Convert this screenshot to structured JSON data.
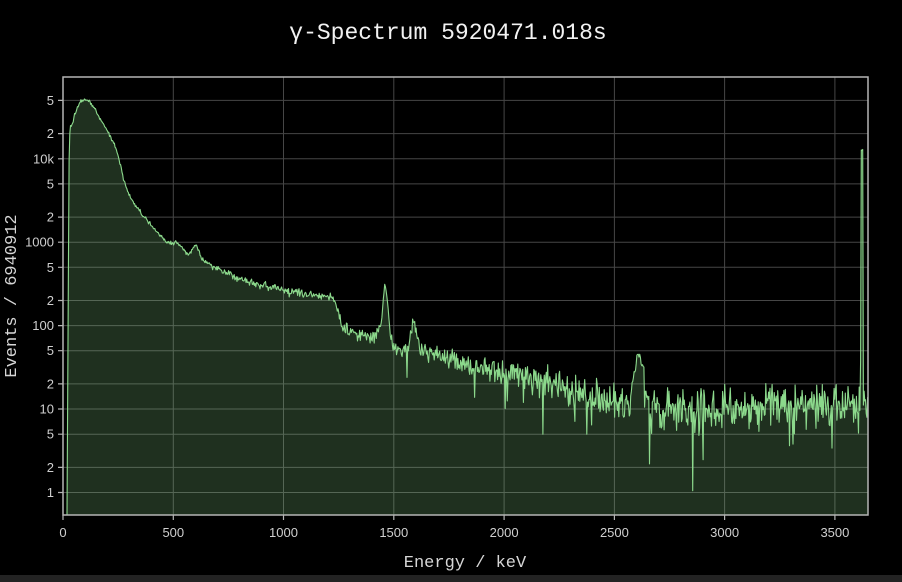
{
  "window": {
    "background_color": "#000000",
    "bottom_edge_color": "#232323"
  },
  "chart_data": {
    "type": "area",
    "title": "γ-Spectrum 5920471.018s",
    "xlabel": "Energy / keV",
    "ylabel": "Events / 6940912",
    "x_range": [
      0,
      3650
    ],
    "y_scale": "log",
    "y_log_range": [
      -0.27,
      4.98
    ],
    "grid": true,
    "legend": "none",
    "x_ticks": [
      0,
      500,
      1000,
      1500,
      2000,
      2500,
      3000,
      3500
    ],
    "y_ticks": [
      {
        "v": 1,
        "label": "1"
      },
      {
        "v": 2,
        "label": "2"
      },
      {
        "v": 5,
        "label": "5"
      },
      {
        "v": 10,
        "label": "10"
      },
      {
        "v": 20,
        "label": "2"
      },
      {
        "v": 50,
        "label": "5"
      },
      {
        "v": 100,
        "label": "100"
      },
      {
        "v": 200,
        "label": "2"
      },
      {
        "v": 500,
        "label": "5"
      },
      {
        "v": 1000,
        "label": "1000"
      },
      {
        "v": 2000,
        "label": "2"
      },
      {
        "v": 5000,
        "label": "5"
      },
      {
        "v": 10000,
        "label": "10k"
      },
      {
        "v": 20000,
        "label": "2"
      },
      {
        "v": 50000,
        "label": "5"
      }
    ],
    "colors": {
      "line": "#8cd98c",
      "fill": "rgba(140,217,140,0.22)",
      "grid": "#464646",
      "axis": "#b5b5b5",
      "tick_text": "#cfcfcf",
      "title_text": "#f2f2f2"
    },
    "notable_peaks": [
      {
        "energy": 100,
        "counts": 51500,
        "note": "broad low-energy maximum"
      },
      {
        "energy": 511,
        "counts": 1050,
        "note": "small bump"
      },
      {
        "energy": 609,
        "counts": 900,
        "note": "small bump"
      },
      {
        "energy": 1461,
        "counts": 335,
        "note": "prominent peak"
      },
      {
        "energy": 1592,
        "counts": 118,
        "note": "secondary peak"
      },
      {
        "energy": 2614,
        "counts": 45,
        "note": "small peak"
      },
      {
        "energy": 3623,
        "counts": 13200,
        "note": "overflow spike at right edge"
      }
    ],
    "backbone": [
      [
        18,
        0.6
      ],
      [
        24,
        300
      ],
      [
        26,
        6000
      ],
      [
        30,
        20000
      ],
      [
        34,
        25500
      ],
      [
        38,
        24500
      ],
      [
        42,
        26500
      ],
      [
        50,
        32000
      ],
      [
        60,
        39000
      ],
      [
        72,
        45000
      ],
      [
        85,
        49500
      ],
      [
        100,
        51500
      ],
      [
        112,
        50500
      ],
      [
        125,
        47000
      ],
      [
        138,
        42500
      ],
      [
        152,
        36500
      ],
      [
        166,
        31000
      ],
      [
        182,
        26000
      ],
      [
        200,
        21500
      ],
      [
        215,
        18500
      ],
      [
        228,
        16000
      ],
      [
        242,
        12800
      ],
      [
        255,
        9800
      ],
      [
        266,
        7300
      ],
      [
        278,
        5300
      ],
      [
        292,
        4200
      ],
      [
        308,
        3400
      ],
      [
        325,
        2800
      ],
      [
        342,
        2450
      ],
      [
        360,
        2150
      ],
      [
        380,
        1850
      ],
      [
        400,
        1600
      ],
      [
        420,
        1380
      ],
      [
        440,
        1200
      ],
      [
        460,
        1070
      ],
      [
        480,
        990
      ],
      [
        498,
        950
      ],
      [
        508,
        1030
      ],
      [
        514,
        1050
      ],
      [
        522,
        950
      ],
      [
        538,
        840
      ],
      [
        555,
        760
      ],
      [
        572,
        730
      ],
      [
        588,
        820
      ],
      [
        600,
        900
      ],
      [
        610,
        850
      ],
      [
        622,
        700
      ],
      [
        638,
        610
      ],
      [
        655,
        560
      ],
      [
        675,
        515
      ],
      [
        700,
        480
      ],
      [
        725,
        450
      ],
      [
        750,
        425
      ],
      [
        775,
        400
      ],
      [
        800,
        375
      ],
      [
        825,
        352
      ],
      [
        850,
        332
      ],
      [
        875,
        318
      ],
      [
        900,
        305
      ],
      [
        930,
        292
      ],
      [
        960,
        282
      ],
      [
        990,
        272
      ],
      [
        1020,
        263
      ],
      [
        1050,
        256
      ],
      [
        1080,
        250
      ],
      [
        1110,
        245
      ],
      [
        1140,
        240
      ],
      [
        1170,
        235
      ],
      [
        1200,
        230
      ],
      [
        1222,
        222
      ],
      [
        1238,
        190
      ],
      [
        1252,
        130
      ],
      [
        1266,
        100
      ],
      [
        1282,
        90
      ],
      [
        1300,
        84
      ],
      [
        1320,
        80
      ],
      [
        1340,
        77
      ],
      [
        1360,
        75
      ],
      [
        1380,
        74
      ],
      [
        1400,
        77
      ],
      [
        1418,
        82
      ],
      [
        1434,
        94
      ],
      [
        1446,
        135
      ],
      [
        1455,
        240
      ],
      [
        1461,
        335
      ],
      [
        1467,
        250
      ],
      [
        1475,
        140
      ],
      [
        1483,
        88
      ],
      [
        1493,
        64
      ],
      [
        1505,
        55
      ],
      [
        1518,
        50
      ],
      [
        1532,
        50
      ],
      [
        1546,
        53
      ],
      [
        1560,
        58
      ],
      [
        1572,
        68
      ],
      [
        1583,
        92
      ],
      [
        1590,
        118
      ],
      [
        1596,
        105
      ],
      [
        1604,
        78
      ],
      [
        1613,
        60
      ],
      [
        1625,
        52
      ],
      [
        1640,
        48
      ],
      [
        1660,
        46
      ],
      [
        1690,
        44
      ],
      [
        1725,
        42
      ],
      [
        1762,
        40
      ],
      [
        1800,
        38
      ],
      [
        1838,
        36
      ],
      [
        1876,
        34
      ],
      [
        1915,
        32
      ],
      [
        1955,
        30
      ],
      [
        2000,
        28.5
      ],
      [
        2045,
        27
      ],
      [
        2090,
        25.5
      ],
      [
        2135,
        24
      ],
      [
        2180,
        22.5
      ],
      [
        2225,
        20.5
      ],
      [
        2270,
        18.5
      ],
      [
        2315,
        16.5
      ],
      [
        2360,
        15
      ],
      [
        2405,
        13.8
      ],
      [
        2455,
        12.8
      ],
      [
        2505,
        12
      ],
      [
        2550,
        11.6
      ],
      [
        2572,
        12.5
      ],
      [
        2590,
        26
      ],
      [
        2604,
        41
      ],
      [
        2614,
        45
      ],
      [
        2624,
        39
      ],
      [
        2636,
        22
      ],
      [
        2648,
        13
      ],
      [
        2672,
        11.3
      ],
      [
        2720,
        10.8
      ],
      [
        2780,
        10.4
      ],
      [
        2840,
        10.2
      ],
      [
        2900,
        10.3
      ],
      [
        2960,
        10.5
      ],
      [
        3030,
        10.7
      ],
      [
        3110,
        10.9
      ],
      [
        3200,
        11.1
      ],
      [
        3290,
        11.3
      ],
      [
        3380,
        11.5
      ],
      [
        3470,
        11.7
      ],
      [
        3550,
        11.9
      ],
      [
        3610,
        12
      ],
      [
        3616,
        12
      ],
      [
        3619,
        13200
      ],
      [
        3626,
        13200
      ],
      [
        3629,
        12.5
      ],
      [
        3640,
        11
      ],
      [
        3648,
        9
      ]
    ],
    "down_spikes": [
      [
        2176,
        5
      ],
      [
        2375,
        5
      ],
      [
        2658,
        2.2
      ],
      [
        2855,
        1.05
      ],
      [
        3310,
        3.8
      ],
      [
        3486,
        3.4
      ]
    ],
    "noise": {
      "seed": 1337,
      "coeff": 0.4,
      "min_sigma": 0.012,
      "max_sigma": 0.22,
      "samples": 1150,
      "spike_prob": 0.05,
      "spike_extra_dex": 0.55,
      "spike_value_threshold": 70
    }
  }
}
